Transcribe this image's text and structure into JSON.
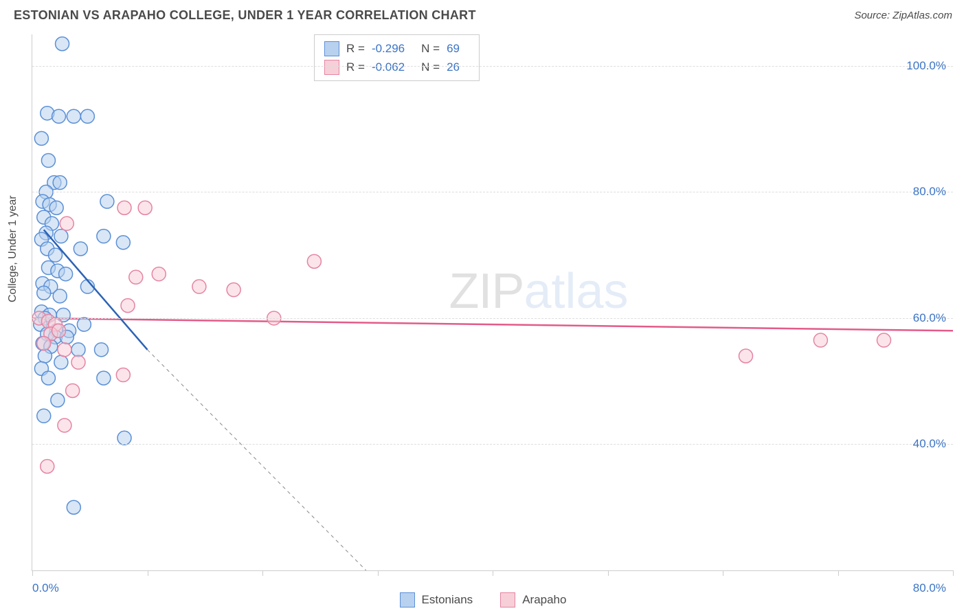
{
  "title": "ESTONIAN VS ARAPAHO COLLEGE, UNDER 1 YEAR CORRELATION CHART",
  "source": "Source: ZipAtlas.com",
  "ylabel": "College, Under 1 year",
  "watermark": {
    "part1": "ZIP",
    "part2": "atlas"
  },
  "chart": {
    "type": "scatter",
    "xlim": [
      0,
      80
    ],
    "ylim": [
      20,
      105
    ],
    "xtick_step": 10,
    "ytick_step": 20,
    "ytick_start": 40,
    "ytick_end": 100,
    "grid_color": "#dddddd",
    "axis_color": "#cccccc",
    "background_color": "#ffffff",
    "x_axis_labels": [
      "0.0%",
      "80.0%"
    ],
    "y_axis_labels": [
      "40.0%",
      "60.0%",
      "80.0%",
      "100.0%"
    ],
    "series": [
      {
        "name": "Estonians",
        "marker_fill": "#b8d1ef",
        "marker_stroke": "#5a8fd6",
        "marker_opacity": 0.55,
        "marker_radius": 10,
        "line_color": "#2b62b5",
        "line_width": 2.5,
        "dash_color": "#888888",
        "regression": {
          "x1": 1,
          "y1": 74,
          "x2_solid": 10,
          "y2_solid": 55,
          "x2_dash": 29,
          "y2_dash": 20
        },
        "points": [
          [
            2.6,
            103.5
          ],
          [
            1.3,
            92.5
          ],
          [
            2.3,
            92
          ],
          [
            3.6,
            92
          ],
          [
            4.8,
            92
          ],
          [
            0.8,
            88.5
          ],
          [
            1.4,
            85
          ],
          [
            1.9,
            81.5
          ],
          [
            2.4,
            81.5
          ],
          [
            1.2,
            80
          ],
          [
            0.9,
            78.5
          ],
          [
            1.5,
            78
          ],
          [
            2.1,
            77.5
          ],
          [
            6.5,
            78.5
          ],
          [
            1.0,
            76
          ],
          [
            1.7,
            75
          ],
          [
            1.2,
            73.5
          ],
          [
            0.8,
            72.5
          ],
          [
            2.5,
            73
          ],
          [
            6.2,
            73
          ],
          [
            7.9,
            72
          ],
          [
            1.3,
            71
          ],
          [
            2.0,
            70
          ],
          [
            4.2,
            71
          ],
          [
            1.4,
            68
          ],
          [
            2.2,
            67.5
          ],
          [
            2.9,
            67
          ],
          [
            0.9,
            65.5
          ],
          [
            1.6,
            65
          ],
          [
            4.8,
            65
          ],
          [
            1.0,
            64
          ],
          [
            2.4,
            63.5
          ],
          [
            0.8,
            61
          ],
          [
            1.5,
            60.5
          ],
          [
            2.7,
            60.5
          ],
          [
            1.1,
            60
          ],
          [
            0.7,
            59
          ],
          [
            2.1,
            58
          ],
          [
            3.2,
            58
          ],
          [
            4.5,
            59
          ],
          [
            1.3,
            57.5
          ],
          [
            2.0,
            57
          ],
          [
            0.9,
            56
          ],
          [
            3.0,
            57
          ],
          [
            1.6,
            55.5
          ],
          [
            4.0,
            55
          ],
          [
            6.0,
            55
          ],
          [
            1.1,
            54
          ],
          [
            2.5,
            53
          ],
          [
            0.8,
            52
          ],
          [
            1.4,
            50.5
          ],
          [
            6.2,
            50.5
          ],
          [
            2.2,
            47
          ],
          [
            1.0,
            44.5
          ],
          [
            8.0,
            41
          ],
          [
            3.6,
            30
          ]
        ],
        "stats": {
          "R": "-0.296",
          "N": "69"
        }
      },
      {
        "name": "Arapaho",
        "marker_fill": "#f7cfd9",
        "marker_stroke": "#e583a1",
        "marker_opacity": 0.55,
        "marker_radius": 10,
        "line_color": "#e35a8a",
        "line_width": 2.5,
        "regression": {
          "x1": 0,
          "y1": 60,
          "x2_solid": 80,
          "y2_solid": 58
        },
        "points": [
          [
            8.0,
            77.5
          ],
          [
            9.8,
            77.5
          ],
          [
            3.0,
            75
          ],
          [
            24.5,
            69
          ],
          [
            9.0,
            66.5
          ],
          [
            11.0,
            67
          ],
          [
            14.5,
            65
          ],
          [
            17.5,
            64.5
          ],
          [
            0.6,
            60
          ],
          [
            1.4,
            59.5
          ],
          [
            2.0,
            59
          ],
          [
            21.0,
            60
          ],
          [
            8.3,
            62
          ],
          [
            1.6,
            57.5
          ],
          [
            2.3,
            58
          ],
          [
            2.8,
            55
          ],
          [
            1.0,
            56
          ],
          [
            4.0,
            53
          ],
          [
            68.5,
            56.5
          ],
          [
            62.0,
            54
          ],
          [
            74.0,
            56.5
          ],
          [
            7.9,
            51
          ],
          [
            3.5,
            48.5
          ],
          [
            2.8,
            43
          ],
          [
            1.3,
            36.5
          ]
        ],
        "stats": {
          "R": "-0.062",
          "N": "26"
        }
      }
    ],
    "bottom_legend": [
      {
        "label": "Estonians",
        "fill": "#b8d1ef",
        "stroke": "#5a8fd6"
      },
      {
        "label": "Arapaho",
        "fill": "#f7cfd9",
        "stroke": "#e583a1"
      }
    ]
  },
  "fontsize": {
    "title": 18,
    "axis_label": 16,
    "tick": 17,
    "legend": 17
  }
}
